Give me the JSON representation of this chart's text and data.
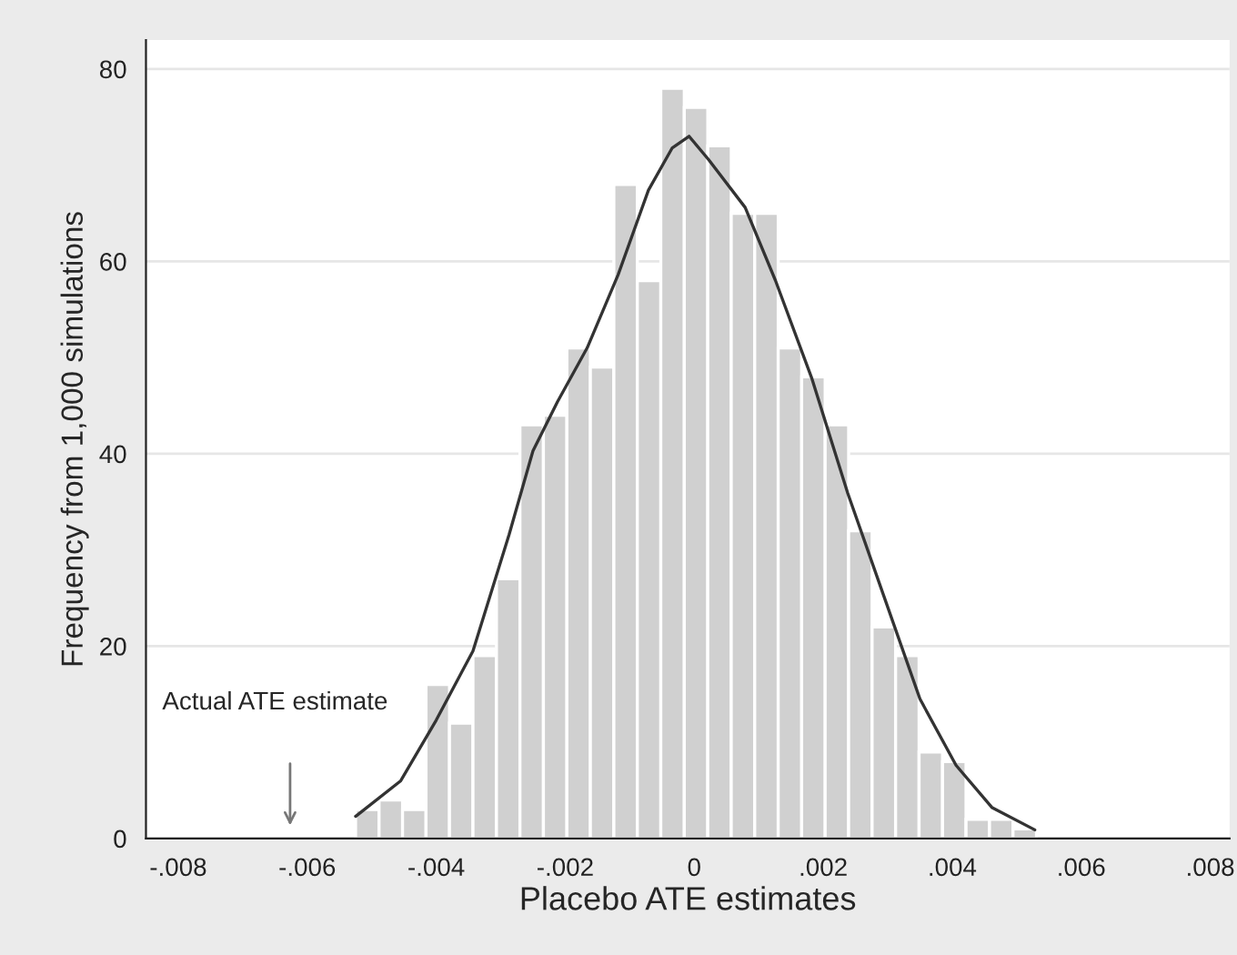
{
  "chart_data": {
    "type": "histogram",
    "xlabel": "Placebo ATE estimates",
    "ylabel": "Frequency from 1,000 simulations",
    "bins": [
      -0.00525,
      -0.004886,
      -0.004522,
      -0.004158,
      -0.003794,
      -0.00343,
      -0.003066,
      -0.002702,
      -0.002338,
      -0.001974,
      -0.00161,
      -0.001246,
      -0.000882,
      -0.000518,
      -0.000154,
      0.00021,
      0.000574,
      0.000938,
      0.001302,
      0.001666,
      0.00203,
      0.002394,
      0.002758,
      0.003122,
      0.003486,
      0.00385,
      0.004214,
      0.004578,
      0.004942,
      0.005306
    ],
    "values": [
      3,
      4,
      3,
      16,
      12,
      19,
      27,
      43,
      44,
      51,
      49,
      68,
      58,
      78,
      76,
      72,
      65,
      65,
      51,
      48,
      43,
      32,
      22,
      19,
      9,
      8,
      2,
      2,
      1
    ],
    "color": "#d0d0d0",
    "series": [
      {
        "type": "line",
        "color": "#333333",
        "x": [
          -0.00525,
          -0.00455,
          -0.004,
          -0.00343,
          -0.00287,
          -0.0025,
          -0.00212,
          -0.00166,
          -0.00118,
          -0.00071,
          -0.00034,
          -8e-05,
          0.00022,
          0.00079,
          0.00126,
          0.00182,
          0.00238,
          0.00294,
          0.0035,
          0.00406,
          0.00462,
          0.00528
        ],
        "values": [
          2.3,
          6,
          12.3,
          19.5,
          31.6,
          40.3,
          45.4,
          51,
          58.6,
          67.4,
          71.8,
          73,
          70.6,
          65.6,
          58,
          47.9,
          35.9,
          25.2,
          14.5,
          7.6,
          3.2,
          0.9
        ]
      }
    ],
    "annotations": [
      "Actual ATE estimate"
    ],
    "xlim": [
      -0.0085,
      0.0083
    ],
    "ylim": [
      0,
      83
    ],
    "xticks": [
      {
        "value": -0.008,
        "label": "-.008"
      },
      {
        "value": -0.006,
        "label": "-.006"
      },
      {
        "value": -0.004,
        "label": "-.004"
      },
      {
        "value": -0.002,
        "label": "-.002"
      },
      0,
      {
        "value": 0.002,
        "label": ".002"
      },
      {
        "value": 0.004,
        "label": ".004"
      },
      {
        "value": 0.006,
        "label": ".006"
      },
      {
        "value": 0.008,
        "label": ".008"
      }
    ],
    "yticks": [
      0,
      20,
      40,
      60,
      80
    ],
    "grid": "y",
    "legend": false
  }
}
